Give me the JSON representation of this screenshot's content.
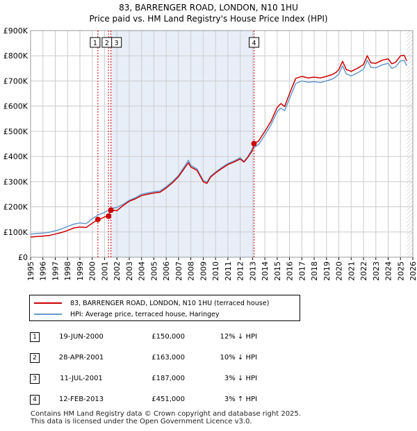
{
  "title_line1": "83, BARRENGER ROAD, LONDON, N10 1HU",
  "title_line2": "Price paid vs. HM Land Registry's House Price Index (HPI)",
  "colors": {
    "property": "#cc0000",
    "hpi": "#6699cc",
    "shade": "#e8eef8",
    "grid": "#cccccc",
    "marker": "#cc0000"
  },
  "chart_data": {
    "type": "line",
    "title": "83, BARRENGER ROAD, LONDON, N10 1HU — Price paid vs. HM Land Registry's House Price Index (HPI)",
    "xlabel": "",
    "ylabel": "",
    "xlim": [
      1995,
      2026
    ],
    "ylim": [
      0,
      900000
    ],
    "x_ticks": [
      "1995",
      "1996",
      "1997",
      "1998",
      "1999",
      "2000",
      "2001",
      "2002",
      "2003",
      "2004",
      "2005",
      "2006",
      "2007",
      "2008",
      "2009",
      "2010",
      "2011",
      "2012",
      "2013",
      "2014",
      "2015",
      "2016",
      "2017",
      "2018",
      "2019",
      "2020",
      "2021",
      "2022",
      "2023",
      "2024",
      "2025",
      "2026"
    ],
    "y_ticks": [
      {
        "value": 0,
        "label": "£0"
      },
      {
        "value": 100000,
        "label": "£100K"
      },
      {
        "value": 200000,
        "label": "£200K"
      },
      {
        "value": 300000,
        "label": "£300K"
      },
      {
        "value": 400000,
        "label": "£400K"
      },
      {
        "value": 500000,
        "label": "£500K"
      },
      {
        "value": 600000,
        "label": "£600K"
      },
      {
        "value": 700000,
        "label": "£700K"
      },
      {
        "value": 800000,
        "label": "£800K"
      },
      {
        "value": 900000,
        "label": "£900K"
      }
    ],
    "grid": true,
    "series": [
      {
        "name": "83, BARRENGER ROAD, LONDON, N10 1HU (terraced house)",
        "x": [
          1995.0,
          1995.5,
          1996.0,
          1996.5,
          1997.0,
          1997.5,
          1998.0,
          1998.5,
          1999.0,
          1999.5,
          2000.0,
          2000.46,
          2000.5,
          2001.0,
          2001.32,
          2001.52,
          2002.0,
          2002.5,
          2003.0,
          2003.5,
          2004.0,
          2004.5,
          2005.0,
          2005.5,
          2006.0,
          2006.5,
          2007.0,
          2007.5,
          2007.8,
          2008.0,
          2008.5,
          2009.0,
          2009.3,
          2009.6,
          2010.0,
          2010.5,
          2011.0,
          2011.5,
          2012.0,
          2012.3,
          2012.6,
          2013.0,
          2013.12,
          2013.5,
          2014.0,
          2014.5,
          2015.0,
          2015.3,
          2015.6,
          2016.0,
          2016.5,
          2017.0,
          2017.5,
          2018.0,
          2018.5,
          2019.0,
          2019.5,
          2019.8,
          2020.0,
          2020.3,
          2020.6,
          2021.0,
          2021.5,
          2022.0,
          2022.3,
          2022.6,
          2023.0,
          2023.5,
          2024.0,
          2024.3,
          2024.6,
          2025.0,
          2025.3,
          2025.5
        ],
        "values": [
          80000,
          82000,
          84000,
          86000,
          92000,
          98000,
          106000,
          116000,
          120000,
          118000,
          135000,
          150000,
          148000,
          160000,
          163000,
          187000,
          185000,
          205000,
          222000,
          232000,
          245000,
          250000,
          255000,
          258000,
          275000,
          295000,
          320000,
          355000,
          375000,
          358000,
          345000,
          300000,
          293000,
          318000,
          335000,
          352000,
          368000,
          378000,
          390000,
          378000,
          395000,
          425000,
          451000,
          462000,
          500000,
          540000,
          595000,
          610000,
          598000,
          650000,
          710000,
          718000,
          712000,
          715000,
          712000,
          718000,
          726000,
          735000,
          745000,
          778000,
          745000,
          738000,
          750000,
          765000,
          800000,
          772000,
          770000,
          782000,
          788000,
          768000,
          774000,
          800000,
          802000,
          780000
        ]
      },
      {
        "name": "HPI: Average price, terraced house, Haringey",
        "x": [
          1995.0,
          1995.5,
          1996.0,
          1996.5,
          1997.0,
          1997.5,
          1998.0,
          1998.5,
          1999.0,
          1999.5,
          2000.0,
          2000.5,
          2001.0,
          2001.5,
          2002.0,
          2002.5,
          2003.0,
          2003.5,
          2004.0,
          2004.5,
          2005.0,
          2005.5,
          2006.0,
          2006.5,
          2007.0,
          2007.5,
          2007.8,
          2008.0,
          2008.5,
          2009.0,
          2009.3,
          2009.6,
          2010.0,
          2010.5,
          2011.0,
          2011.5,
          2012.0,
          2012.3,
          2012.6,
          2013.0,
          2013.5,
          2014.0,
          2014.5,
          2015.0,
          2015.3,
          2015.6,
          2016.0,
          2016.5,
          2017.0,
          2017.5,
          2018.0,
          2018.5,
          2019.0,
          2019.5,
          2019.8,
          2020.0,
          2020.3,
          2020.6,
          2021.0,
          2021.5,
          2022.0,
          2022.3,
          2022.6,
          2023.0,
          2023.5,
          2024.0,
          2024.3,
          2024.6,
          2025.0,
          2025.3,
          2025.5
        ],
        "values": [
          92000,
          94000,
          96000,
          99000,
          105000,
          112000,
          122000,
          131000,
          136000,
          133000,
          153000,
          168000,
          178000,
          193000,
          198000,
          210000,
          226000,
          236000,
          250000,
          255000,
          260000,
          263000,
          280000,
          300000,
          325000,
          362000,
          385000,
          365000,
          350000,
          305000,
          298000,
          322000,
          338000,
          356000,
          372000,
          382000,
          395000,
          380000,
          398000,
          432000,
          448000,
          486000,
          526000,
          578000,
          592000,
          582000,
          630000,
          690000,
          700000,
          695000,
          697000,
          694000,
          700000,
          708000,
          718000,
          728000,
          760000,
          728000,
          720000,
          732000,
          746000,
          782000,
          754000,
          752000,
          764000,
          770000,
          750000,
          756000,
          780000,
          782000,
          760000
        ]
      }
    ],
    "transactions": [
      {
        "label": "1",
        "x": 2000.46,
        "value": 150000
      },
      {
        "label": "2",
        "x": 2001.32,
        "value": 163000
      },
      {
        "label": "3",
        "x": 2001.52,
        "value": 187000
      },
      {
        "label": "4",
        "x": 2013.12,
        "value": 451000
      }
    ],
    "shaded_range": [
      2001.52,
      2013.12
    ],
    "hatched_from": 2025.5
  },
  "legend": {
    "property_label": "83, BARRENGER ROAD, LONDON, N10 1HU (terraced house)",
    "hpi_label": "HPI: Average price, terraced house, Haringey"
  },
  "sales": [
    {
      "num": "1",
      "date": "19-JUN-2000",
      "price": "£150,000",
      "hpi": "12% ↓ HPI"
    },
    {
      "num": "2",
      "date": "28-APR-2001",
      "price": "£163,000",
      "hpi": "10% ↓ HPI"
    },
    {
      "num": "3",
      "date": "11-JUL-2001",
      "price": "£187,000",
      "hpi": "3% ↓ HPI"
    },
    {
      "num": "4",
      "date": "12-FEB-2013",
      "price": "£451,000",
      "hpi": "3% ↑ HPI"
    }
  ],
  "footer": {
    "line1": "Contains HM Land Registry data © Crown copyright and database right 2025.",
    "line2": "This data is licensed under the Open Government Licence v3.0."
  }
}
